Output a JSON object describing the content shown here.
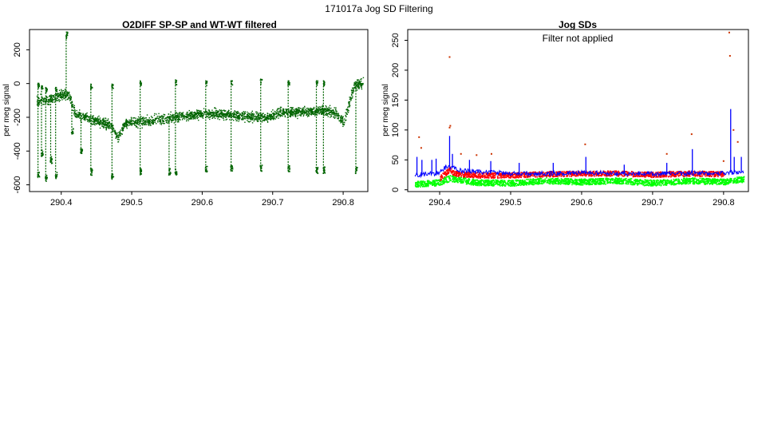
{
  "page_title": "171017a   Jog SD Filtering",
  "colors": {
    "signal": "#006400",
    "sd_blue": "#0000ff",
    "sd_red": "#ff0000",
    "sd_green": "#00ff00",
    "outlier": "#cc3300",
    "axis": "#000000"
  },
  "chart_data": [
    {
      "type": "scatter",
      "title": "O2DIFF SP-SP and WT-WT filtered",
      "xlabel": "",
      "ylabel": "per meg signal",
      "xlim": [
        290.355,
        290.835
      ],
      "ylim": [
        -640,
        320
      ],
      "xticks": [
        290.4,
        290.5,
        290.6,
        290.7,
        290.8
      ],
      "xtick_labels": [
        "290.4",
        "290.5",
        "290.6",
        "290.7",
        "290.8"
      ],
      "yticks": [
        -600,
        -400,
        -200,
        0,
        200
      ],
      "ytick_labels": [
        "-600",
        "-400",
        "-200",
        "0",
        "200"
      ],
      "grid": false,
      "series": [
        {
          "color": "#006400",
          "baseline": [
            [
              290.365,
              -100
            ],
            [
              290.38,
              -95
            ],
            [
              290.395,
              -70
            ],
            [
              290.41,
              -60
            ],
            [
              290.42,
              -180
            ],
            [
              290.44,
              -210
            ],
            [
              290.46,
              -230
            ],
            [
              290.47,
              -250
            ],
            [
              290.48,
              -320
            ],
            [
              290.49,
              -230
            ],
            [
              290.52,
              -220
            ],
            [
              290.55,
              -200
            ],
            [
              290.58,
              -190
            ],
            [
              290.6,
              -175
            ],
            [
              290.63,
              -180
            ],
            [
              290.66,
              -190
            ],
            [
              290.69,
              -200
            ],
            [
              290.71,
              -170
            ],
            [
              290.74,
              -165
            ],
            [
              290.77,
              -160
            ],
            [
              290.79,
              -170
            ],
            [
              290.8,
              -230
            ],
            [
              290.815,
              -10
            ],
            [
              290.825,
              0
            ]
          ],
          "spikes": [
            [
              290.367,
              -560
            ],
            [
              290.372,
              -430
            ],
            [
              290.378,
              -580
            ],
            [
              290.385,
              -470
            ],
            [
              290.392,
              -560
            ],
            [
              290.407,
              270
            ],
            [
              290.415,
              -300
            ],
            [
              290.428,
              -420
            ],
            [
              290.442,
              -540
            ],
            [
              290.472,
              -570
            ],
            [
              290.512,
              -540
            ],
            [
              290.553,
              -540
            ],
            [
              290.562,
              -540
            ],
            [
              290.605,
              -520
            ],
            [
              290.641,
              -520
            ],
            [
              290.683,
              -520
            ],
            [
              290.722,
              -520
            ],
            [
              290.762,
              -530
            ],
            [
              290.772,
              -530
            ],
            [
              290.818,
              -530
            ]
          ],
          "peaks": [
            [
              290.367,
              5
            ],
            [
              290.372,
              -10
            ],
            [
              290.378,
              -20
            ],
            [
              290.392,
              -20
            ],
            [
              290.442,
              0
            ],
            [
              290.472,
              0
            ],
            [
              290.512,
              20
            ],
            [
              290.562,
              25
            ],
            [
              290.605,
              20
            ],
            [
              290.641,
              20
            ],
            [
              290.683,
              30
            ],
            [
              290.722,
              20
            ],
            [
              290.762,
              20
            ],
            [
              290.772,
              20
            ]
          ]
        }
      ]
    },
    {
      "type": "line",
      "title": "Jog SDs",
      "annotation": "Filter not applied",
      "xlabel": "",
      "ylabel": "per meg signal",
      "xlim": [
        290.355,
        290.835
      ],
      "ylim": [
        -3,
        268
      ],
      "xticks": [
        290.4,
        290.5,
        290.6,
        290.7,
        290.8
      ],
      "xtick_labels": [
        "290.4",
        "290.5",
        "290.6",
        "290.7",
        "290.8"
      ],
      "yticks": [
        0,
        50,
        100,
        150,
        200,
        250
      ],
      "ytick_labels": [
        "0",
        "50",
        "100",
        "150",
        "200",
        "250"
      ],
      "grid": false,
      "series": [
        {
          "color": "#0000ff",
          "level": [
            [
              290.365,
              25
            ],
            [
              290.4,
              28
            ],
            [
              290.41,
              40
            ],
            [
              290.43,
              32
            ],
            [
              290.5,
              27
            ],
            [
              290.6,
              28
            ],
            [
              290.7,
              27
            ],
            [
              290.8,
              28
            ],
            [
              290.825,
              30
            ]
          ],
          "spikes": [
            [
              290.368,
              55
            ],
            [
              290.375,
              50
            ],
            [
              290.389,
              50
            ],
            [
              290.395,
              52
            ],
            [
              290.414,
              90
            ],
            [
              290.418,
              60
            ],
            [
              290.442,
              50
            ],
            [
              290.472,
              48
            ],
            [
              290.512,
              45
            ],
            [
              290.56,
              45
            ],
            [
              290.606,
              55
            ],
            [
              290.66,
              42
            ],
            [
              290.72,
              45
            ],
            [
              290.756,
              68
            ],
            [
              290.81,
              135
            ],
            [
              290.815,
              55
            ],
            [
              290.825,
              55
            ]
          ]
        },
        {
          "color": "#ff0000",
          "level": [
            [
              290.4,
              20
            ],
            [
              290.414,
              35
            ],
            [
              290.42,
              28
            ],
            [
              290.45,
              25
            ],
            [
              290.5,
              25
            ],
            [
              290.55,
              27
            ],
            [
              290.6,
              28
            ],
            [
              290.65,
              28
            ],
            [
              290.7,
              26
            ],
            [
              290.75,
              28
            ],
            [
              290.8,
              27
            ]
          ]
        },
        {
          "color": "#00ff00",
          "level": [
            [
              290.365,
              10
            ],
            [
              290.4,
              13
            ],
            [
              290.414,
              20
            ],
            [
              290.45,
              13
            ],
            [
              290.5,
              12
            ],
            [
              290.55,
              16
            ],
            [
              290.6,
              14
            ],
            [
              290.65,
              16
            ],
            [
              290.7,
              12
            ],
            [
              290.75,
              16
            ],
            [
              290.8,
              14
            ],
            [
              290.825,
              18
            ]
          ]
        },
        {
          "color": "#cc3300",
          "outliers": [
            [
              290.414,
              222
            ],
            [
              290.415,
              107
            ],
            [
              290.414,
              104
            ],
            [
              290.371,
              88
            ],
            [
              290.43,
              60
            ],
            [
              290.452,
              58
            ],
            [
              290.473,
              60
            ],
            [
              290.605,
              76
            ],
            [
              290.72,
              60
            ],
            [
              290.755,
              93
            ],
            [
              290.808,
              263
            ],
            [
              290.809,
              224
            ],
            [
              290.814,
              100
            ],
            [
              290.82,
              80
            ],
            [
              290.8,
              48
            ],
            [
              290.374,
              70
            ]
          ]
        }
      ]
    }
  ]
}
